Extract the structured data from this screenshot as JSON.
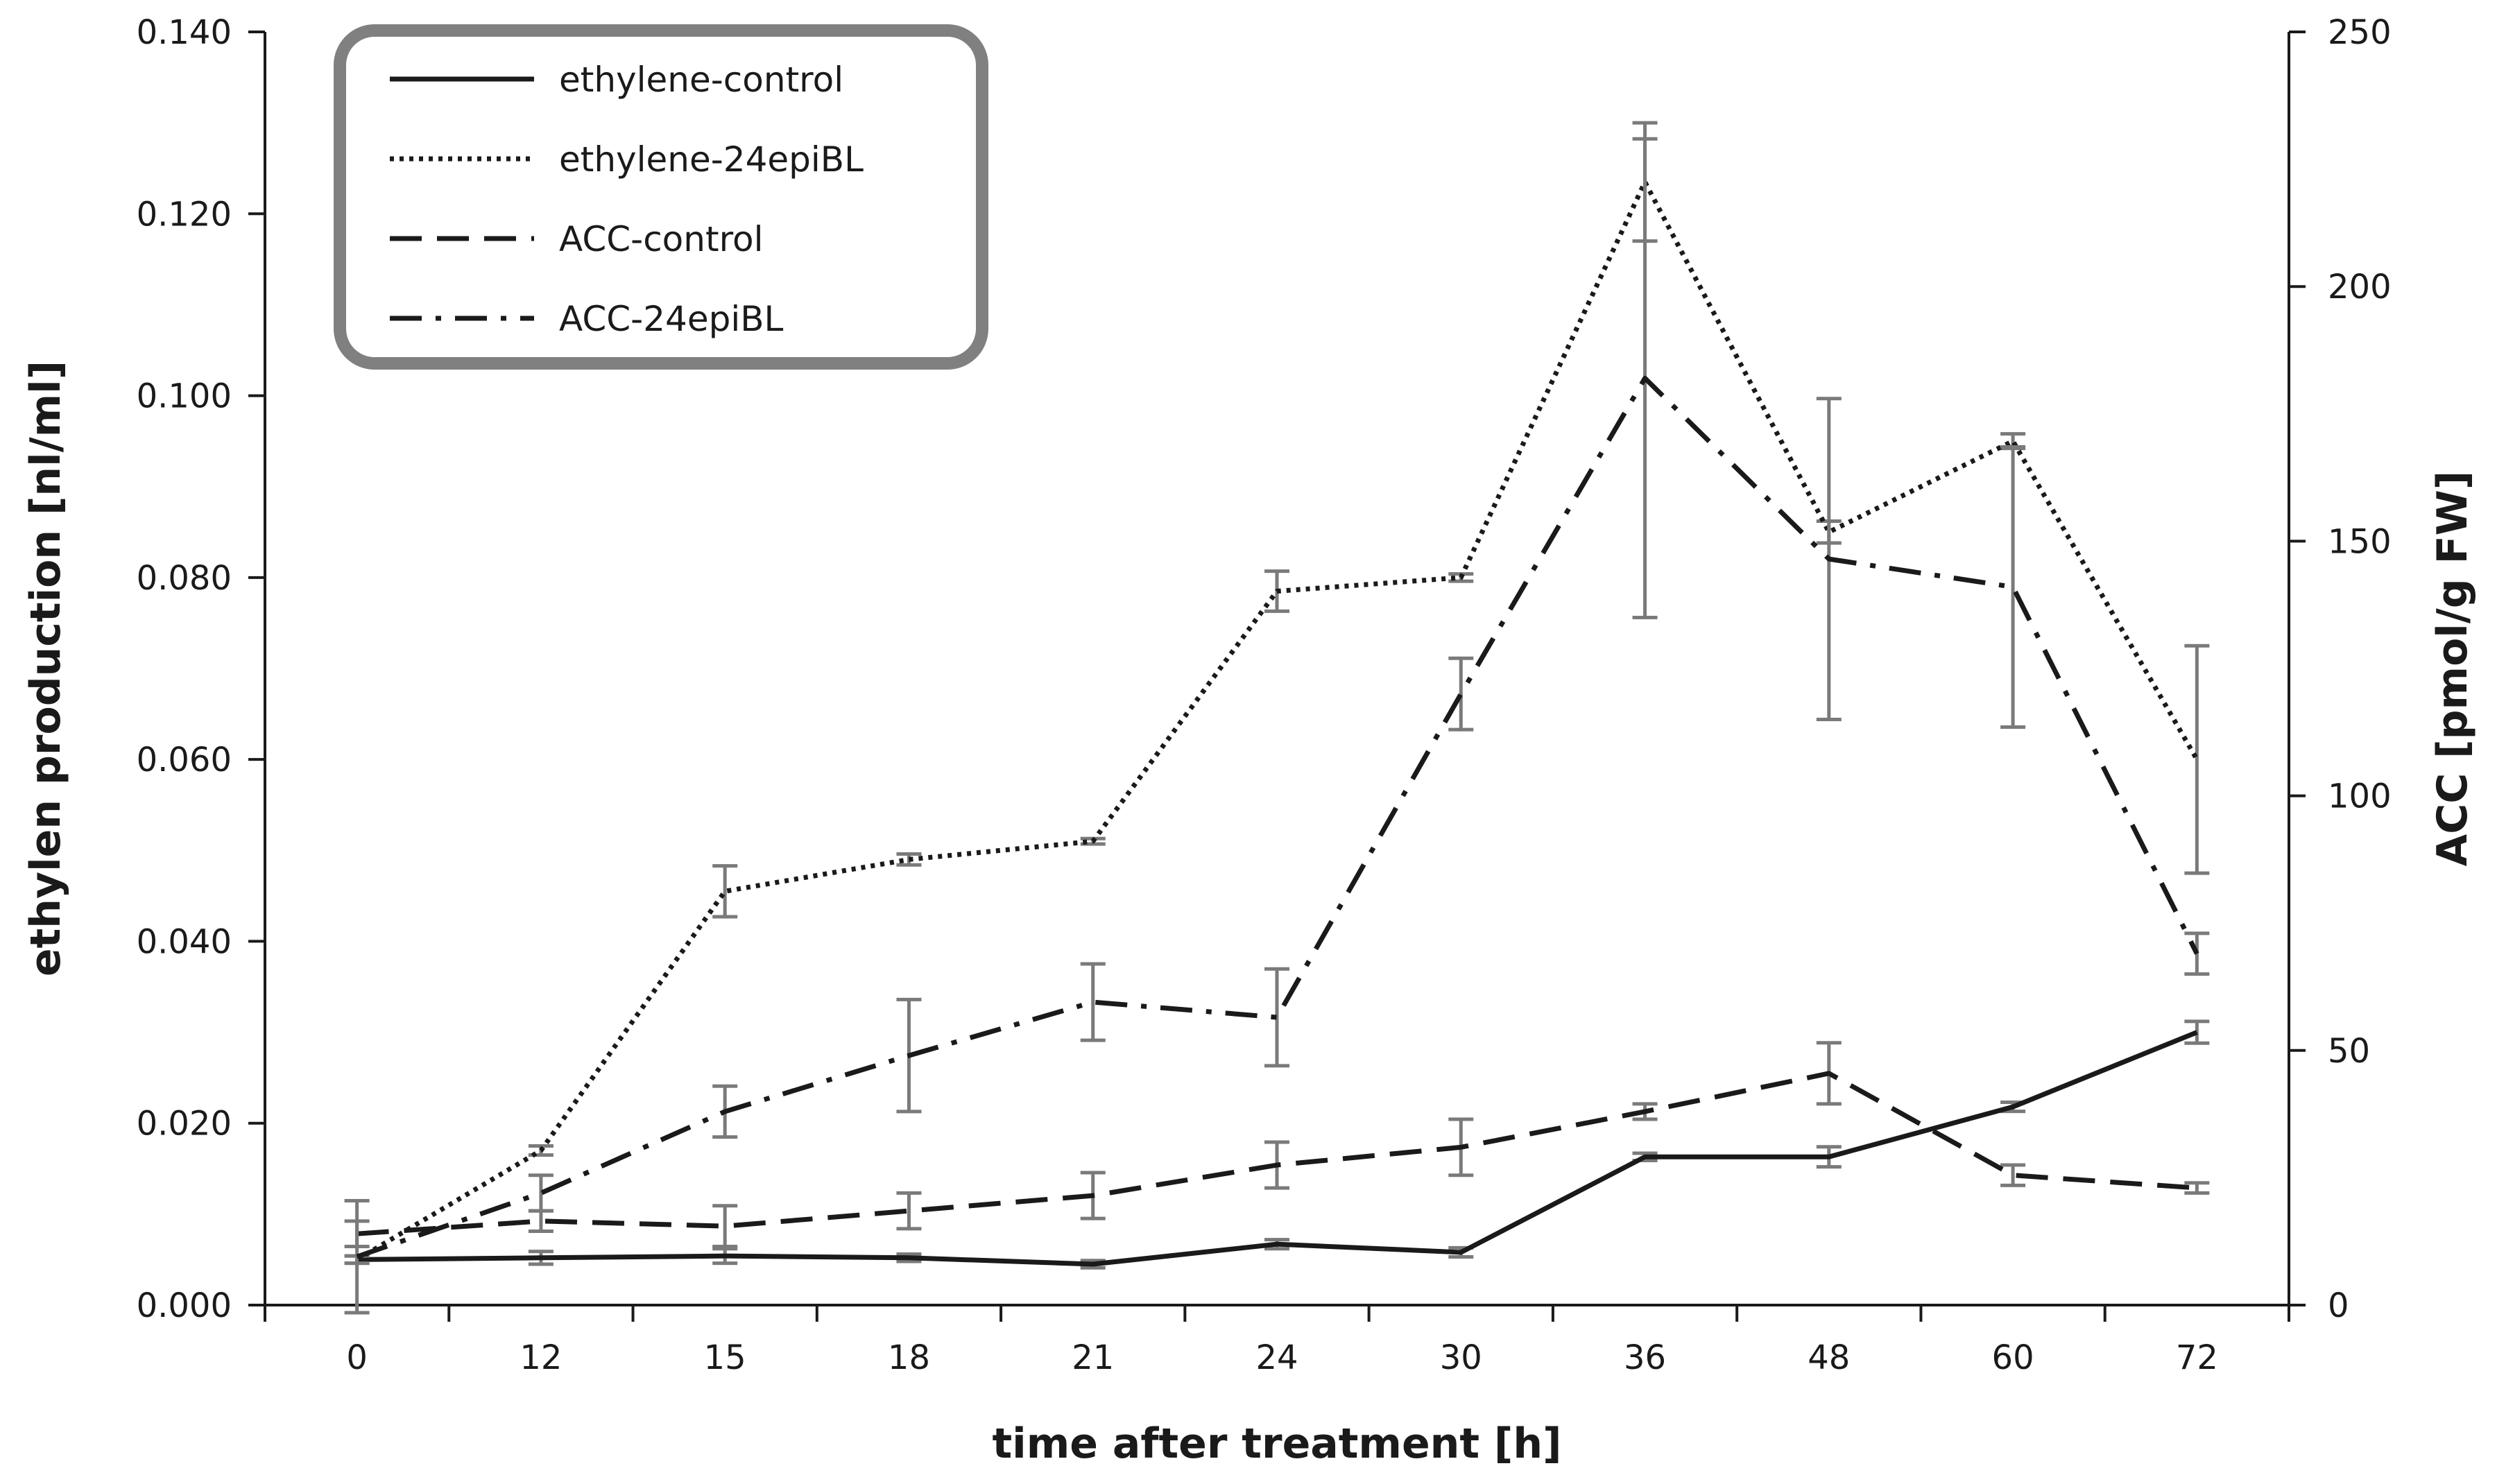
{
  "chart_data": {
    "type": "line",
    "title": "",
    "categories": [
      "0",
      "12",
      "15",
      "18",
      "21",
      "24",
      "30",
      "36",
      "48",
      "60",
      "72"
    ],
    "xlabel": "time after treatment [h]",
    "ylabel": "ethylen production [nl/ml]",
    "y2label": "ACC [pmol/g FW]",
    "ylim": [
      0,
      0.14
    ],
    "y2lim": [
      0,
      250
    ],
    "yticks": [
      "0.000",
      "0.020",
      "0.040",
      "0.060",
      "0.080",
      "0.100",
      "0.120",
      "0.140"
    ],
    "y2ticks": [
      "0",
      "50",
      "100",
      "150",
      "200",
      "250"
    ],
    "legend_position": "top-left",
    "series": [
      {
        "name": "ethylene-control",
        "axis": "left",
        "dash": "solid",
        "values": [
          0.005,
          0.0052,
          0.0054,
          0.0052,
          0.0045,
          0.0067,
          0.0058,
          0.0163,
          0.0163,
          0.0218,
          0.03
        ],
        "errors": [
          0.0004,
          0.0007,
          0.0008,
          0.0004,
          0.0004,
          0.0005,
          0.0005,
          0.0004,
          0.0011,
          0.0005,
          0.0012
        ]
      },
      {
        "name": "ethylene-24epiBL",
        "axis": "left",
        "dash": "dotted",
        "values": [
          0.005,
          0.017,
          0.0455,
          0.049,
          0.051,
          0.0785,
          0.08,
          0.1235,
          0.085,
          0.095,
          0.06
        ],
        "errors": [
          0.0004,
          0.0005,
          0.0028,
          0.0006,
          0.0003,
          0.0022,
          0.0004,
          0.0065,
          0.0012,
          0.0008,
          0.0125
        ]
      },
      {
        "name": "ACC-control",
        "axis": "right",
        "dash": "dashed",
        "values": [
          14,
          16.5,
          15.5,
          18.5,
          21.5,
          27.5,
          31,
          38,
          45.5,
          25.5,
          23
        ],
        "errors": [
          2.5,
          2,
          4,
          3.5,
          4.5,
          4.5,
          5.5,
          1.5,
          6,
          2,
          1
        ]
      },
      {
        "name": "ACC-24epiBL",
        "axis": "right",
        "dash": "dash-dot",
        "values": [
          9.5,
          22,
          38,
          49,
          59.5,
          56.5,
          120,
          182,
          146.5,
          141,
          69
        ],
        "errors": [
          11,
          3.5,
          5,
          11,
          7.5,
          9.5,
          7,
          47,
          31.5,
          27.5,
          4
        ]
      }
    ]
  }
}
